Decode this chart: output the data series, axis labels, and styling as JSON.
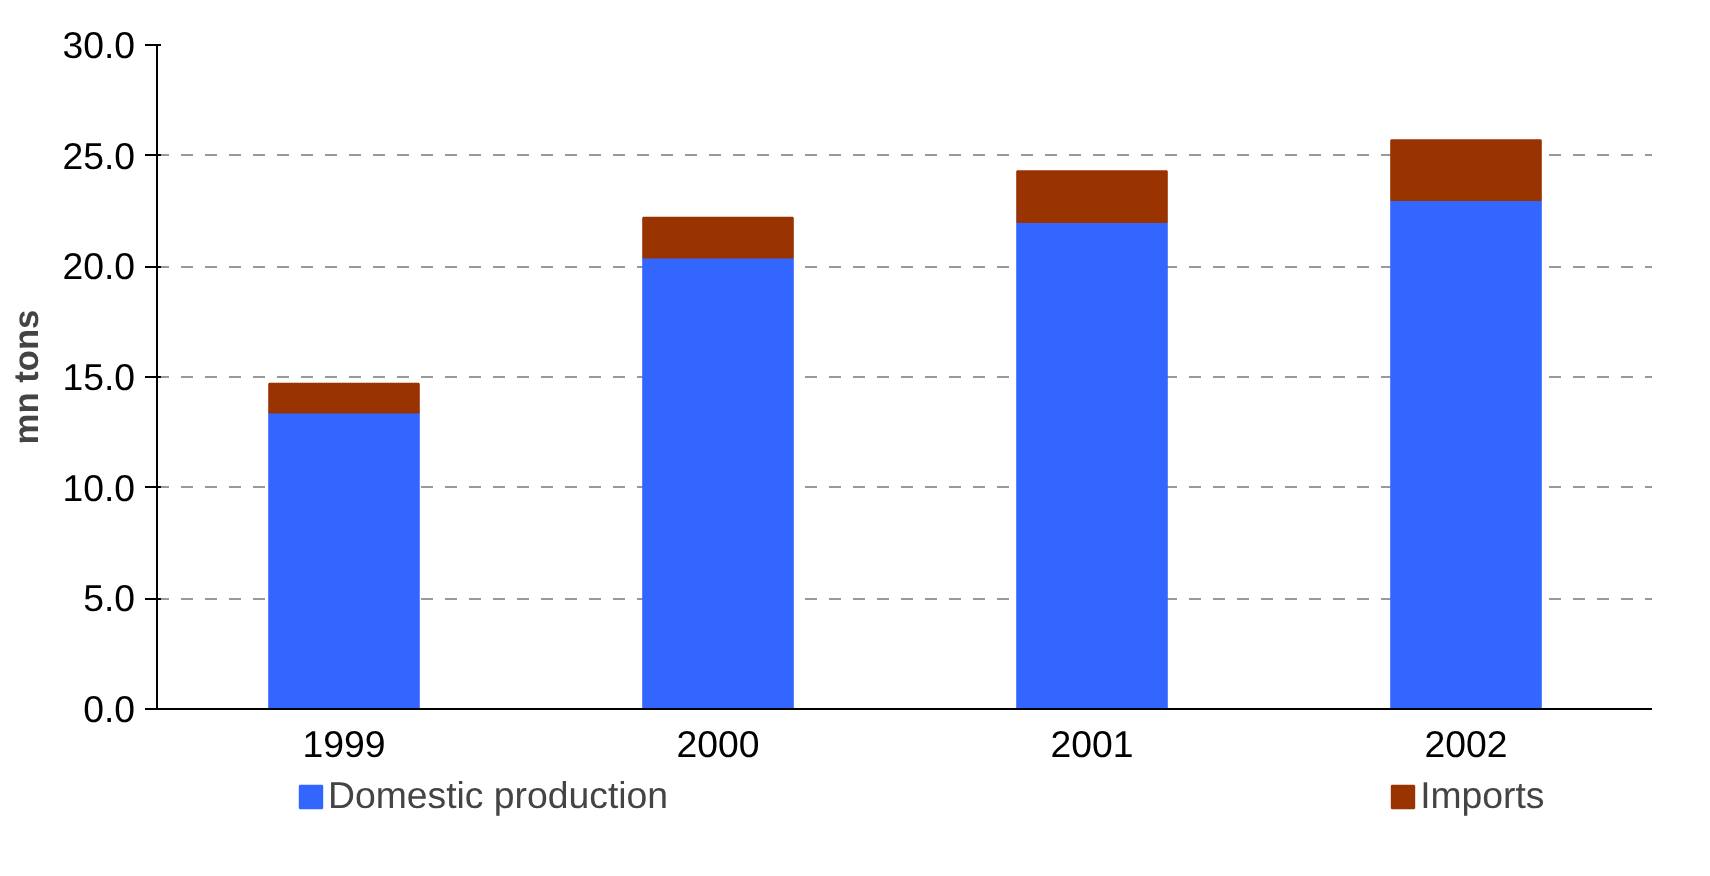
{
  "chart_data": {
    "type": "bar",
    "stacked": true,
    "ylabel": "mn tons",
    "categories": [
      "1999",
      "2000",
      "2001",
      "2002"
    ],
    "series": [
      {
        "name": "Domestic production",
        "color": "#3366ff",
        "values": [
          13.4,
          20.4,
          22.0,
          23.0
        ]
      },
      {
        "name": "Imports",
        "color": "#993300",
        "values": [
          1.3,
          1.8,
          2.3,
          2.7
        ]
      }
    ],
    "ylim": [
      0,
      30
    ],
    "yticks": [
      {
        "value": 0,
        "label": "0.0"
      },
      {
        "value": 5,
        "label": "5.0"
      },
      {
        "value": 10,
        "label": "10.0"
      },
      {
        "value": 15,
        "label": "15.0"
      },
      {
        "value": 20,
        "label": "20.0"
      },
      {
        "value": 25,
        "label": "25.0"
      },
      {
        "value": 30,
        "label": "30.0"
      }
    ],
    "grid": "y",
    "legend": "bottom"
  }
}
